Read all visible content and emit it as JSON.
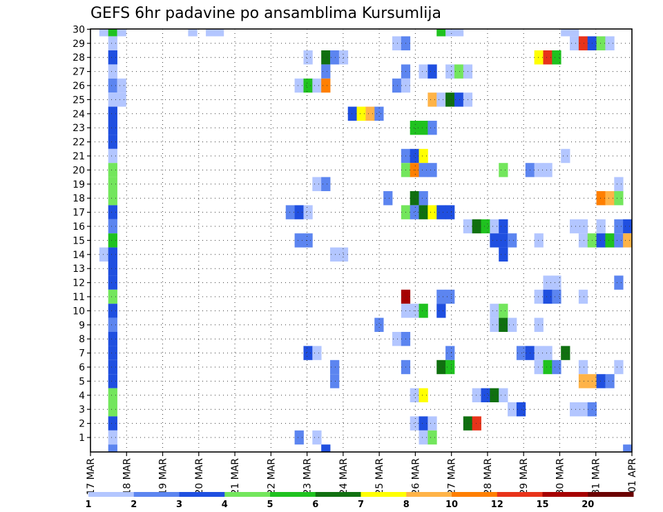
{
  "chart_data": {
    "type": "heatmap",
    "title": "GEFS 6hr padavine po ansamblima Kursumlija",
    "xlabel": "",
    "ylabel": "",
    "x_tick_labels": [
      "17 MAR",
      "18 MAR",
      "19 MAR",
      "20 MAR",
      "21 MAR",
      "22 MAR",
      "23 MAR",
      "24 MAR",
      "25 MAR",
      "26 MAR",
      "27 MAR",
      "28 MAR",
      "29 MAR",
      "30 MAR",
      "31 MAR",
      "01 APR"
    ],
    "y_tick_labels": [
      "1",
      "2",
      "3",
      "4",
      "5",
      "6",
      "7",
      "8",
      "9",
      "10",
      "11",
      "12",
      "13",
      "14",
      "15",
      "16",
      "17",
      "18",
      "19",
      "20",
      "21",
      "22",
      "23",
      "24",
      "25",
      "26",
      "27",
      "28",
      "29",
      "30"
    ],
    "grid": true,
    "legend_placement": "bottom",
    "color_levels": [
      {
        "range": "1-2",
        "color": "#b3c6ff"
      },
      {
        "range": "2-3",
        "color": "#5c85f0"
      },
      {
        "range": "3-4",
        "color": "#1f4fe0"
      },
      {
        "range": "4-5",
        "color": "#73e65c"
      },
      {
        "range": "5-6",
        "color": "#1fc21f"
      },
      {
        "range": "6-7",
        "color": "#107010"
      },
      {
        "range": "7-8",
        "color": "#ffff00"
      },
      {
        "range": "8-10",
        "color": "#ffb347"
      },
      {
        "range": "10-12",
        "color": "#ff7f00"
      },
      {
        "range": "12-15",
        "color": "#e8331a"
      },
      {
        "range": "15-20",
        "color": "#a60000"
      },
      {
        "range": "20+",
        "color": "#6b0000"
      }
    ],
    "legend_labels": [
      "1",
      "2",
      "3",
      "4",
      "5",
      "6",
      "7",
      "8",
      "10",
      "12",
      "15",
      "20"
    ],
    "cells": [
      [
        30,
        1,
        0
      ],
      [
        30,
        2,
        4
      ],
      [
        30,
        3,
        0
      ],
      [
        30,
        11,
        0
      ],
      [
        30,
        13,
        0
      ],
      [
        30,
        14,
        0
      ],
      [
        30,
        39,
        4
      ],
      [
        30,
        40,
        0
      ],
      [
        30,
        41,
        0
      ],
      [
        30,
        53,
        0
      ],
      [
        30,
        54,
        0
      ],
      [
        29,
        2,
        0
      ],
      [
        29,
        34,
        0
      ],
      [
        29,
        35,
        1
      ],
      [
        29,
        54,
        0
      ],
      [
        29,
        55,
        9
      ],
      [
        29,
        56,
        2
      ],
      [
        29,
        57,
        3
      ],
      [
        29,
        58,
        0
      ],
      [
        28,
        2,
        2
      ],
      [
        28,
        24,
        0
      ],
      [
        28,
        26,
        5
      ],
      [
        28,
        27,
        1
      ],
      [
        28,
        28,
        0
      ],
      [
        28,
        50,
        6
      ],
      [
        28,
        51,
        9
      ],
      [
        28,
        52,
        4
      ],
      [
        27,
        2,
        0
      ],
      [
        27,
        26,
        1
      ],
      [
        27,
        35,
        1
      ],
      [
        27,
        37,
        0
      ],
      [
        27,
        38,
        2
      ],
      [
        27,
        40,
        0
      ],
      [
        27,
        41,
        3
      ],
      [
        27,
        42,
        0
      ],
      [
        26,
        2,
        1
      ],
      [
        26,
        3,
        0
      ],
      [
        26,
        23,
        0
      ],
      [
        26,
        24,
        4
      ],
      [
        26,
        25,
        0
      ],
      [
        26,
        26,
        8
      ],
      [
        26,
        34,
        1
      ],
      [
        26,
        35,
        0
      ],
      [
        25,
        2,
        0
      ],
      [
        25,
        3,
        0
      ],
      [
        25,
        38,
        7
      ],
      [
        25,
        39,
        0
      ],
      [
        25,
        40,
        5
      ],
      [
        25,
        41,
        2
      ],
      [
        25,
        42,
        0
      ],
      [
        24,
        2,
        2
      ],
      [
        24,
        29,
        2
      ],
      [
        24,
        30,
        6
      ],
      [
        24,
        31,
        7
      ],
      [
        24,
        32,
        1
      ],
      [
        23,
        2,
        2
      ],
      [
        23,
        36,
        4
      ],
      [
        23,
        37,
        4
      ],
      [
        23,
        38,
        1
      ],
      [
        22,
        2,
        2
      ],
      [
        21,
        2,
        0
      ],
      [
        21,
        35,
        1
      ],
      [
        21,
        36,
        2
      ],
      [
        21,
        37,
        6
      ],
      [
        21,
        53,
        0
      ],
      [
        20,
        2,
        3
      ],
      [
        20,
        35,
        3
      ],
      [
        20,
        36,
        8
      ],
      [
        20,
        37,
        1
      ],
      [
        20,
        38,
        1
      ],
      [
        20,
        46,
        3
      ],
      [
        20,
        49,
        1
      ],
      [
        20,
        50,
        0
      ],
      [
        20,
        51,
        0
      ],
      [
        19,
        2,
        3
      ],
      [
        19,
        25,
        0
      ],
      [
        19,
        26,
        1
      ],
      [
        19,
        59,
        0
      ],
      [
        18,
        2,
        3
      ],
      [
        18,
        33,
        1
      ],
      [
        18,
        36,
        5
      ],
      [
        18,
        37,
        1
      ],
      [
        18,
        57,
        8
      ],
      [
        18,
        58,
        7
      ],
      [
        18,
        59,
        3
      ],
      [
        17,
        2,
        2
      ],
      [
        17,
        22,
        1
      ],
      [
        17,
        23,
        2
      ],
      [
        17,
        24,
        0
      ],
      [
        17,
        35,
        3
      ],
      [
        17,
        36,
        1
      ],
      [
        17,
        37,
        5
      ],
      [
        17,
        38,
        6
      ],
      [
        17,
        39,
        2
      ],
      [
        17,
        40,
        2
      ],
      [
        16,
        2,
        1
      ],
      [
        16,
        42,
        0
      ],
      [
        16,
        43,
        5
      ],
      [
        16,
        44,
        4
      ],
      [
        16,
        45,
        0
      ],
      [
        16,
        46,
        2
      ],
      [
        16,
        54,
        0
      ],
      [
        16,
        55,
        0
      ],
      [
        16,
        57,
        0
      ],
      [
        16,
        59,
        1
      ],
      [
        16,
        60,
        2
      ],
      [
        15,
        2,
        4
      ],
      [
        15,
        23,
        1
      ],
      [
        15,
        24,
        1
      ],
      [
        15,
        45,
        2
      ],
      [
        15,
        46,
        2
      ],
      [
        15,
        47,
        1
      ],
      [
        15,
        50,
        0
      ],
      [
        15,
        55,
        0
      ],
      [
        15,
        56,
        3
      ],
      [
        15,
        57,
        2
      ],
      [
        15,
        58,
        4
      ],
      [
        15,
        59,
        1
      ],
      [
        15,
        60,
        7
      ],
      [
        14,
        1,
        0
      ],
      [
        14,
        2,
        2
      ],
      [
        14,
        27,
        0
      ],
      [
        14,
        28,
        0
      ],
      [
        14,
        46,
        2
      ],
      [
        13,
        2,
        2
      ],
      [
        12,
        2,
        2
      ],
      [
        12,
        51,
        0
      ],
      [
        12,
        52,
        0
      ],
      [
        12,
        59,
        1
      ],
      [
        11,
        2,
        3
      ],
      [
        11,
        35,
        10
      ],
      [
        11,
        39,
        1
      ],
      [
        11,
        40,
        1
      ],
      [
        11,
        50,
        0
      ],
      [
        11,
        51,
        2
      ],
      [
        11,
        52,
        1
      ],
      [
        11,
        55,
        0
      ],
      [
        10,
        2,
        2
      ],
      [
        10,
        35,
        0
      ],
      [
        10,
        36,
        0
      ],
      [
        10,
        37,
        4
      ],
      [
        10,
        39,
        2
      ],
      [
        10,
        45,
        0
      ],
      [
        10,
        46,
        3
      ],
      [
        9,
        2,
        1
      ],
      [
        9,
        32,
        1
      ],
      [
        9,
        45,
        0
      ],
      [
        9,
        46,
        5
      ],
      [
        9,
        47,
        0
      ],
      [
        9,
        50,
        0
      ],
      [
        8,
        2,
        2
      ],
      [
        8,
        34,
        0
      ],
      [
        8,
        35,
        1
      ],
      [
        7,
        2,
        2
      ],
      [
        7,
        24,
        2
      ],
      [
        7,
        25,
        0
      ],
      [
        7,
        40,
        1
      ],
      [
        7,
        48,
        1
      ],
      [
        7,
        49,
        2
      ],
      [
        7,
        50,
        0
      ],
      [
        7,
        51,
        0
      ],
      [
        7,
        53,
        5
      ],
      [
        6,
        2,
        2
      ],
      [
        6,
        27,
        1
      ],
      [
        6,
        35,
        1
      ],
      [
        6,
        39,
        5
      ],
      [
        6,
        40,
        4
      ],
      [
        6,
        50,
        0
      ],
      [
        6,
        51,
        4
      ],
      [
        6,
        52,
        1
      ],
      [
        6,
        55,
        0
      ],
      [
        6,
        59,
        0
      ],
      [
        5,
        2,
        2
      ],
      [
        5,
        27,
        1
      ],
      [
        5,
        55,
        7
      ],
      [
        5,
        56,
        7
      ],
      [
        5,
        57,
        2
      ],
      [
        5,
        58,
        1
      ],
      [
        4,
        2,
        3
      ],
      [
        4,
        36,
        0
      ],
      [
        4,
        37,
        6
      ],
      [
        4,
        43,
        0
      ],
      [
        4,
        44,
        2
      ],
      [
        4,
        45,
        5
      ],
      [
        4,
        46,
        0
      ],
      [
        3,
        2,
        3
      ],
      [
        3,
        47,
        0
      ],
      [
        3,
        48,
        2
      ],
      [
        3,
        54,
        0
      ],
      [
        3,
        55,
        0
      ],
      [
        3,
        56,
        1
      ],
      [
        2,
        2,
        2
      ],
      [
        2,
        36,
        0
      ],
      [
        2,
        37,
        2
      ],
      [
        2,
        38,
        0
      ],
      [
        2,
        42,
        5
      ],
      [
        2,
        43,
        9
      ],
      [
        1,
        2,
        0
      ],
      [
        1,
        23,
        1
      ],
      [
        1,
        25,
        0
      ],
      [
        1,
        37,
        0
      ],
      [
        1,
        38,
        3
      ],
      [
        0,
        2,
        1
      ],
      [
        0,
        26,
        2
      ],
      [
        0,
        60,
        1
      ]
    ]
  }
}
